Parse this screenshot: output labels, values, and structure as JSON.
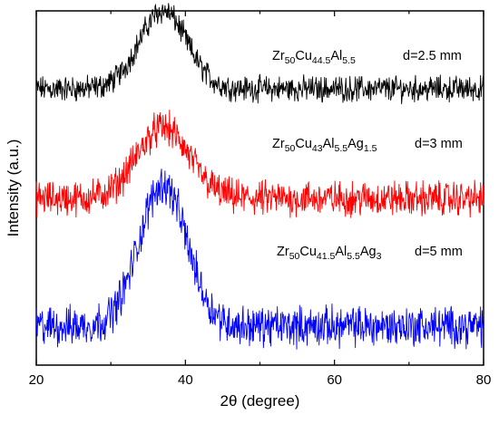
{
  "chart_data": {
    "type": "line",
    "xlabel": "2θ (degree)",
    "ylabel": "Intensity (a.u.)",
    "xlim": [
      20,
      80
    ],
    "xticks": [
      "20",
      "40",
      "60",
      "80"
    ],
    "y_tick_labels": "none",
    "grid": false,
    "series": [
      {
        "name": "Zr50Cu44.5Al5.5 d=2.5 mm",
        "composition": [
          [
            "Zr",
            "50"
          ],
          [
            "Cu",
            "44.5"
          ],
          [
            "Al",
            "5.5"
          ]
        ],
        "thickness": "d=2.5 mm",
        "color": "#000000",
        "baseline": 0.78,
        "noise": 0.055,
        "peak": {
          "center": 37,
          "height": 0.22,
          "width": 3.2
        },
        "points": [
          [
            20,
            0.78
          ],
          [
            30,
            0.78
          ],
          [
            34,
            0.83
          ],
          [
            36,
            0.92
          ],
          [
            37,
            1.0
          ],
          [
            38,
            0.96
          ],
          [
            40,
            0.86
          ],
          [
            44,
            0.8
          ],
          [
            60,
            0.78
          ],
          [
            80,
            0.78
          ]
        ]
      },
      {
        "name": "Zr50Cu43Al5.5Ag1.5 d=3 mm",
        "composition": [
          [
            "Zr",
            "50"
          ],
          [
            "Cu",
            "43"
          ],
          [
            "Al",
            "5.5"
          ],
          [
            "Ag",
            "1.5"
          ]
        ],
        "thickness": "d=3 mm",
        "color": "#ff0000",
        "baseline": 0.47,
        "noise": 0.075,
        "peak": {
          "center": 37,
          "height": 0.2,
          "width": 3.5
        },
        "points": [
          [
            20,
            0.47
          ],
          [
            30,
            0.47
          ],
          [
            34,
            0.53
          ],
          [
            36,
            0.62
          ],
          [
            37,
            0.67
          ],
          [
            38,
            0.65
          ],
          [
            40,
            0.57
          ],
          [
            44,
            0.5
          ],
          [
            60,
            0.47
          ],
          [
            80,
            0.47
          ]
        ]
      },
      {
        "name": "Zr50Cu41.5Al5.5Ag3 d=5 mm",
        "composition": [
          [
            "Zr",
            "50"
          ],
          [
            "Cu",
            "41.5"
          ],
          [
            "Al",
            "5.5"
          ],
          [
            "Ag",
            "3"
          ]
        ],
        "thickness": "d=5 mm",
        "color": "#0000ff",
        "baseline": 0.11,
        "noise": 0.085,
        "peak": {
          "center": 37,
          "height": 0.4,
          "width": 3.2
        },
        "points": [
          [
            20,
            0.11
          ],
          [
            30,
            0.12
          ],
          [
            33,
            0.2
          ],
          [
            35,
            0.37
          ],
          [
            37,
            0.51
          ],
          [
            39,
            0.42
          ],
          [
            41,
            0.27
          ],
          [
            45,
            0.16
          ],
          [
            60,
            0.12
          ],
          [
            80,
            0.11
          ]
        ]
      }
    ]
  }
}
